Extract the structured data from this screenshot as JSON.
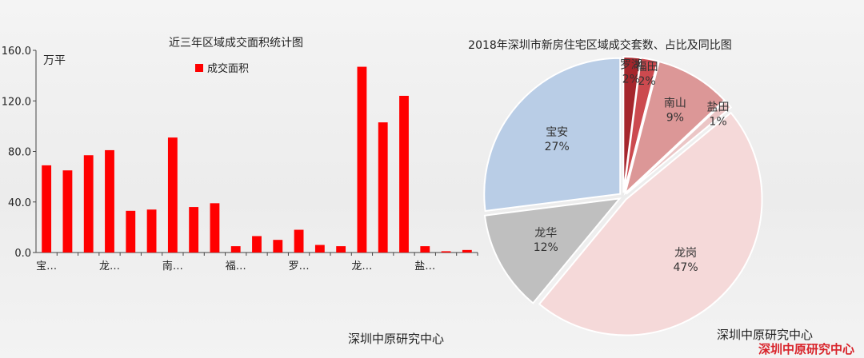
{
  "chart_data": [
    {
      "type": "bar",
      "title": "近三年区域成交面积统计图",
      "ylabel": "万平",
      "ylim": [
        0,
        160
      ],
      "yticks": [
        "0.0",
        "40.0",
        "80.0",
        "120.0",
        "160.0"
      ],
      "categories": [
        "宝…",
        "",
        "",
        "龙…",
        "",
        "",
        "南…",
        "",
        "",
        "福…",
        "",
        "",
        "罗…",
        "",
        "",
        "龙…",
        "",
        "",
        "盐…",
        "",
        ""
      ],
      "series": [
        {
          "name": "成交面积",
          "color": "#ff0000",
          "values": [
            69,
            65,
            77,
            81,
            33,
            34,
            91,
            36,
            39,
            5,
            13,
            10,
            18,
            6,
            5,
            147,
            103,
            124,
            5,
            1,
            2
          ]
        }
      ],
      "legend_position": "top-center",
      "grid": false
    },
    {
      "type": "pie",
      "title": "2018年深圳市新房住宅区域成交套数、占比及同比图",
      "slices": [
        {
          "name": "罗湖",
          "value": 2,
          "label": "2%",
          "color": "#a5262c"
        },
        {
          "name": "福田",
          "value": 2,
          "label": "2%",
          "color": "#cc4a4f"
        },
        {
          "name": "南山",
          "value": 9,
          "label": "9%",
          "color": "#dc9797"
        },
        {
          "name": "盐田",
          "value": 1,
          "label": "1%",
          "color": "#ebc6c6"
        },
        {
          "name": "龙岗",
          "value": 47,
          "label": "47%",
          "color": "#f5d9d9"
        },
        {
          "name": "龙华",
          "value": 12,
          "label": "12%",
          "color": "#bfbfbf"
        },
        {
          "name": "宝安",
          "value": 27,
          "label": "27%",
          "color": "#b9cde6"
        }
      ]
    }
  ],
  "credits": {
    "left": "深圳中原研究中心",
    "right": "深圳中原研究中心",
    "watermark": "深圳中原研究中心"
  }
}
